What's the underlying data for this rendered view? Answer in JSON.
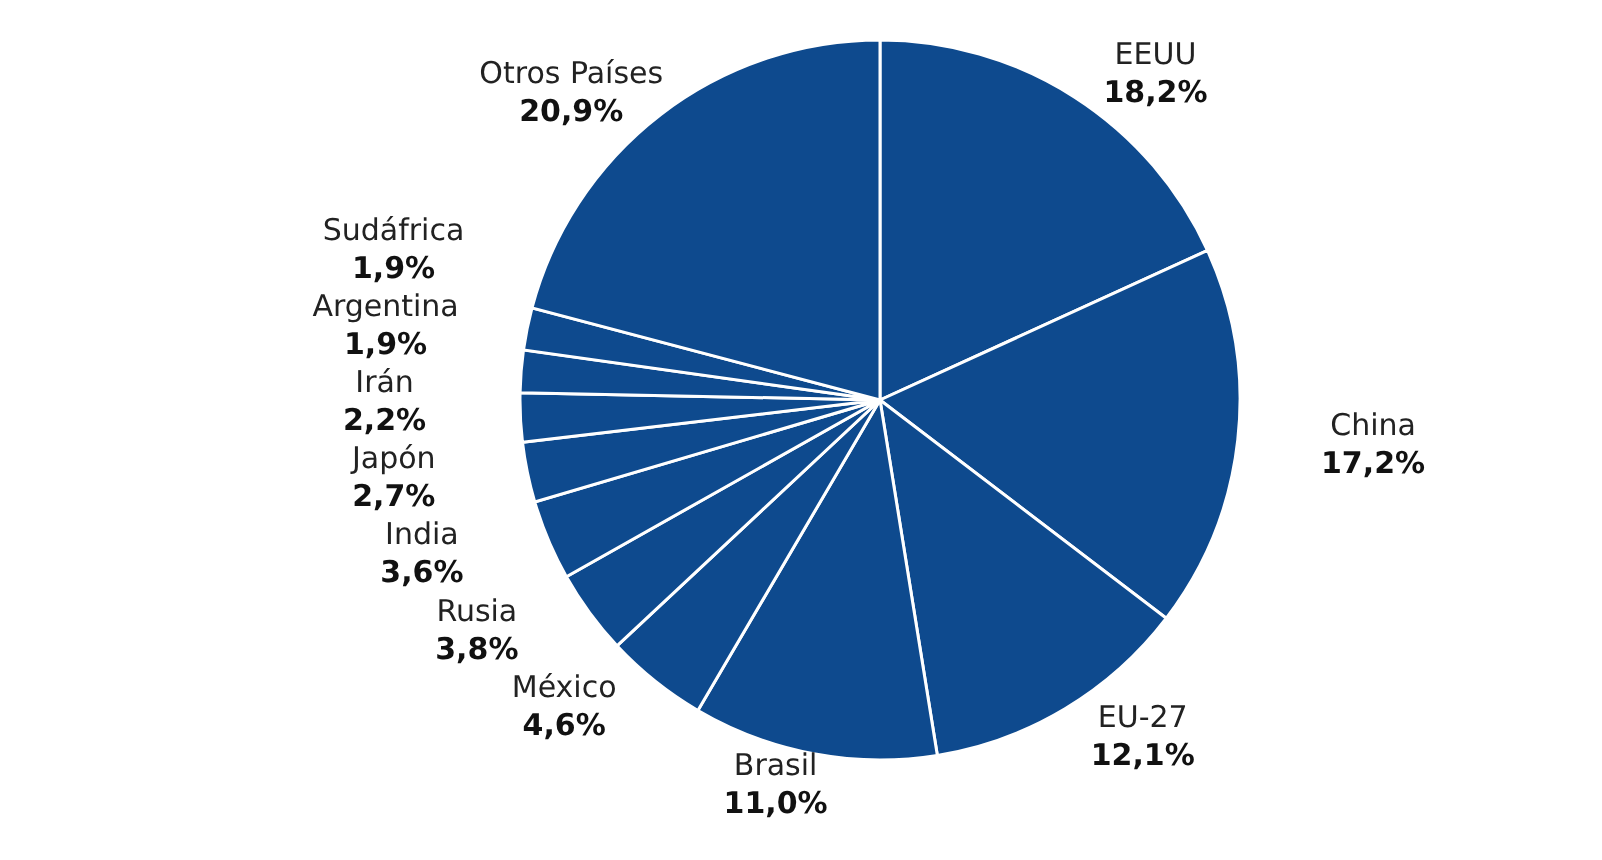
{
  "chart_data": {
    "type": "pie",
    "categories": [
      "EEUU",
      "China",
      "EU-27",
      "Brasil",
      "México",
      "Rusia",
      "India",
      "Japón",
      "Irán",
      "Argentina",
      "Sudáfrica",
      "Otros Países"
    ],
    "values": [
      18.2,
      17.2,
      12.1,
      11.0,
      4.6,
      3.8,
      3.6,
      2.7,
      2.2,
      1.9,
      1.9,
      20.9
    ],
    "value_labels": [
      "18,2%",
      "17,2%",
      "12,1%",
      "11,0%",
      "4,6%",
      "3,8%",
      "3,6%",
      "2,7%",
      "2,2%",
      "1,9%",
      "1,9%",
      "20,9%"
    ],
    "colors": [
      "#0e4a8e",
      "#0e4a8e",
      "#0e4a8e",
      "#0e4a8e",
      "#0e4a8e",
      "#0e4a8e",
      "#0e4a8e",
      "#0e4a8e",
      "#0e4a8e",
      "#0e4a8e",
      "#0e4a8e",
      "#0e4a8e"
    ]
  }
}
